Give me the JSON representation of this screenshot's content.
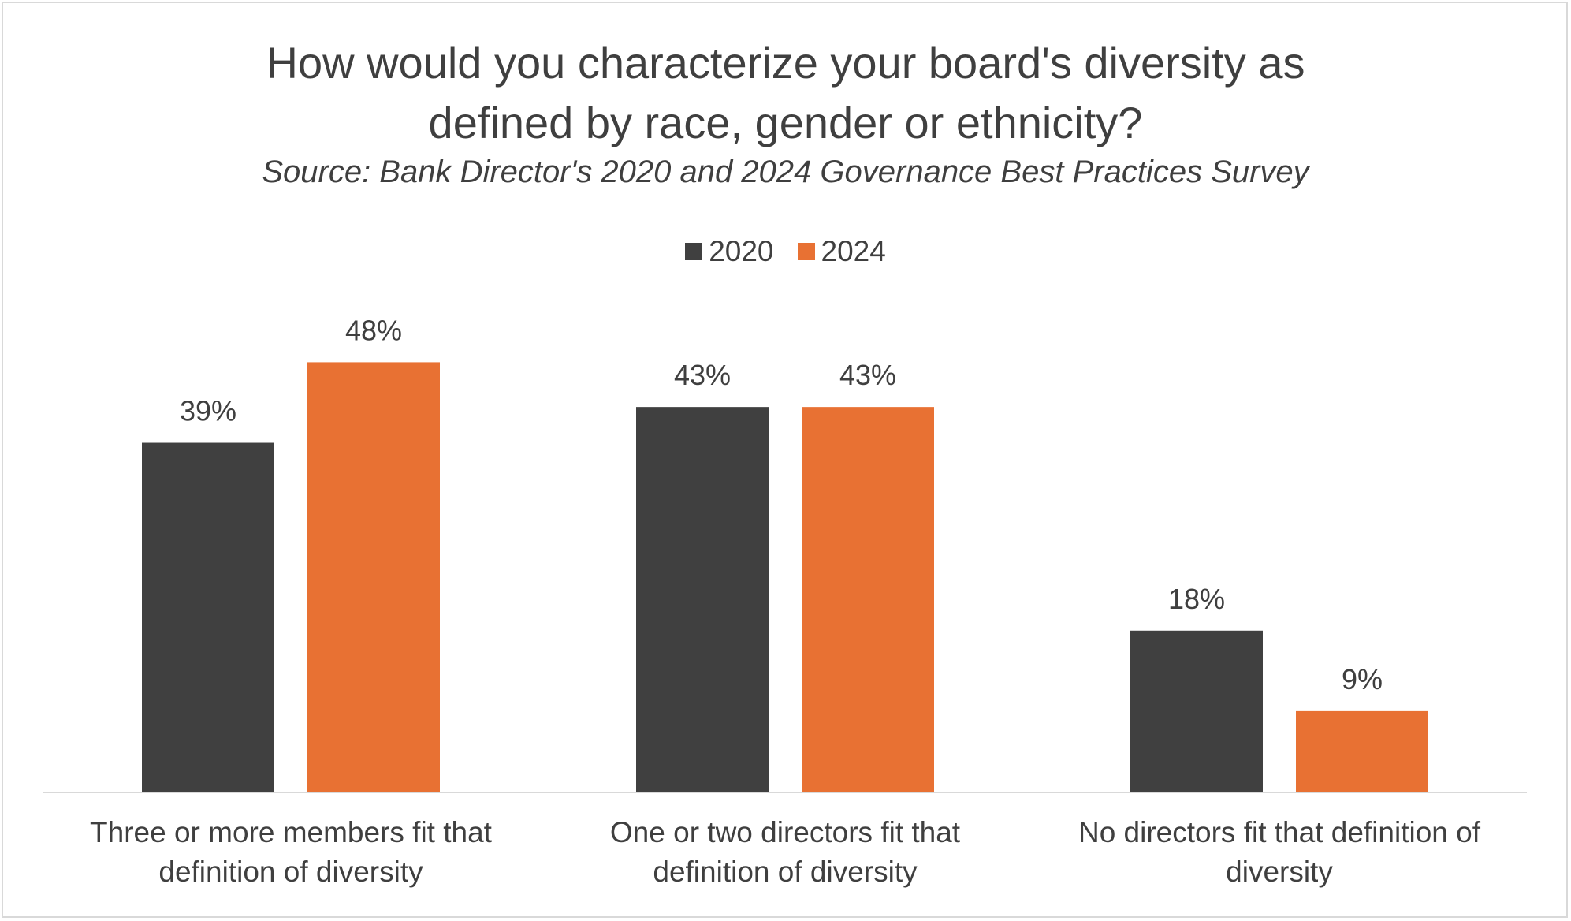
{
  "chart_data": {
    "type": "bar",
    "title_lines": [
      "How would you characterize your board's diversity as",
      "defined by race, gender or ethnicity?"
    ],
    "subtitle": "Source: Bank Director's 2020 and 2024 Governance Best Practices Survey",
    "categories": [
      [
        "Three or more members fit that",
        "definition of diversity"
      ],
      [
        "One or two directors fit that",
        "definition of diversity"
      ],
      [
        "No directors fit that definition of",
        "diversity"
      ]
    ],
    "series": [
      {
        "name": "2020",
        "color": "#404040",
        "values": [
          39,
          43,
          18
        ],
        "labels": [
          "39%",
          "43%",
          "18%"
        ]
      },
      {
        "name": "2024",
        "color": "#e87133",
        "values": [
          48,
          43,
          9
        ],
        "labels": [
          "48%",
          "43%",
          "9%"
        ]
      }
    ],
    "ylim": [
      0,
      55
    ],
    "legend_position": "top",
    "grid": false
  }
}
